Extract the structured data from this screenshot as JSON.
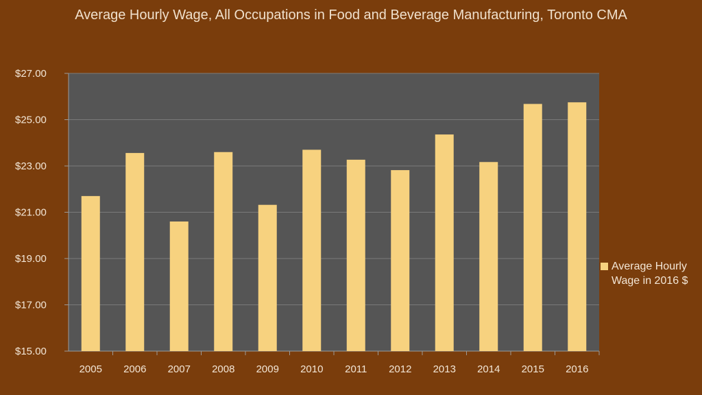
{
  "chart_data": {
    "type": "bar",
    "title": "Average Hourly Wage, All Occupations in Food and Beverage Manufacturing, Toronto CMA",
    "categories": [
      "2005",
      "2006",
      "2007",
      "2008",
      "2009",
      "2010",
      "2011",
      "2012",
      "2013",
      "2014",
      "2015",
      "2016"
    ],
    "series": [
      {
        "name": "Average Hourly Wage in 2016 $",
        "values": [
          21.7,
          23.56,
          20.6,
          23.6,
          21.32,
          23.7,
          23.27,
          22.82,
          24.36,
          23.17,
          25.68,
          25.75
        ],
        "color": "#f7d27f"
      }
    ],
    "y_ticks": [
      "$15.00",
      "$17.00",
      "$19.00",
      "$21.00",
      "$23.00",
      "$25.00",
      "$27.00"
    ],
    "ylim": [
      15,
      27
    ],
    "xlabel": "",
    "ylabel": "",
    "grid": true,
    "legend_position": "right",
    "plot_background": "#555555"
  }
}
